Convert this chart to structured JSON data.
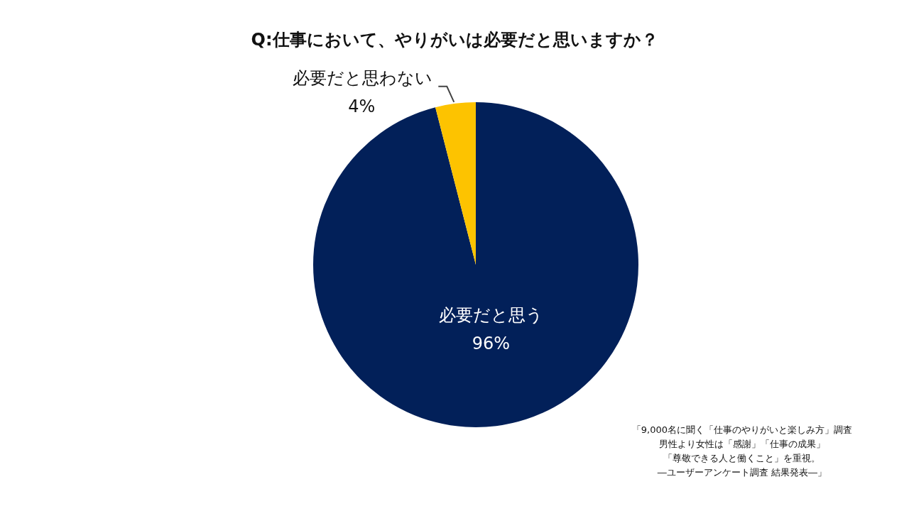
{
  "chart_data": {
    "type": "pie",
    "title": "Q:仕事において、やりがいは必要だと思いますか？",
    "categories": [
      "必要だと思う",
      "必要だと思わない"
    ],
    "values": [
      96,
      4
    ],
    "colors": [
      "#022059",
      "#fdc300"
    ],
    "value_labels": [
      "96%",
      "4%"
    ],
    "legend": false,
    "annotations": [
      "「9,000名に聞く「仕事のやりがいと楽しみ方」調査",
      "男性より女性は「感謝」「仕事の成果」",
      "「尊敬できる人と働くこと」を重視。",
      "―ユーザーアンケート調査 結果発表―」"
    ]
  }
}
